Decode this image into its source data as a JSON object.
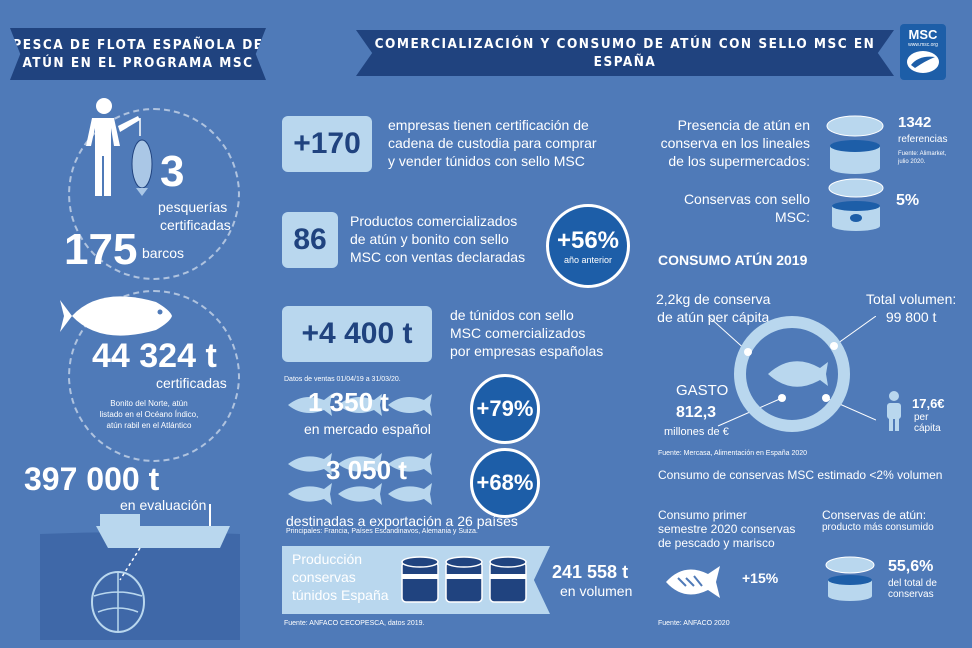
{
  "left_banner": {
    "line1": "PESCA DE FLOTA ESPAÑOLA DE",
    "line2": "ATÚN EN EL PROGRAMA MSC"
  },
  "right_banner": "COMERCIALIZACIÓN Y CONSUMO DE ATÚN CON SELLO MSC EN ESPAÑA",
  "logo": {
    "text": "MSC",
    "url": "www.msc.org"
  },
  "left": {
    "fisheries_count": "3",
    "fisheries_label1": "pesquerías",
    "fisheries_label2": "certificadas",
    "boats_count": "175",
    "boats_label": "barcos",
    "certified_tonnes": "44 324 t",
    "certified_label": "certificadas",
    "species1": "Bonito del Norte, atún",
    "species2": "listado en el Océano Índico,",
    "species3": "atún rabil en el Atlántico",
    "evaluation_tonnes": "397 000 t",
    "evaluation_label": "en evaluación"
  },
  "middle": {
    "companies_value": "+170",
    "companies_text1": "empresas tienen certificación de",
    "companies_text2": "cadena de custodia para comprar",
    "companies_text3": "y vender túnidos con sello MSC",
    "products_value": "86",
    "products_text1": "Productos comercializados",
    "products_text2": "de atún y bonito con sello",
    "products_text3": "MSC con ventas declaradas",
    "products_growth": "+56%",
    "products_growth_label": "año anterior",
    "tonnes_value": "+4 400 t",
    "tonnes_text1": "de túnidos con sello",
    "tonnes_text2": "MSC comercializados",
    "tonnes_text3": "por empresas españolas",
    "sales_dates": "Datos de ventas 01/04/19 a 31/03/20.",
    "domestic_value": "1 350 t",
    "domestic_label": "en mercado español",
    "domestic_growth": "+79%",
    "export_value": "3 050 t",
    "export_growth": "+68%",
    "export_label": "destinadas a exportación a 26 países",
    "export_countries": "Principales: Francia, Países Escandinavos, Alemania y Suiza.",
    "production_label1": "Producción",
    "production_label2": "conservas",
    "production_label3": "túnidos España",
    "production_value": "241 558 t",
    "production_unit": "en volumen",
    "production_source": "Fuente: ANFACO CECOPESCA, datos 2019."
  },
  "right": {
    "presence_text1": "Presencia de atún en",
    "presence_text2": "conserva en los lineales",
    "presence_text3": "de los supermercados:",
    "references_value": "1342",
    "references_label": "referencias",
    "references_source1": "Fuente: Alimarket,",
    "references_source2": "julio 2020.",
    "msc_cans_text1": "Conservas con sello",
    "msc_cans_text2": "MSC:",
    "msc_cans_value": "5%",
    "consumption_title": "CONSUMO ATÚN 2019",
    "per_capita_text1": "2,2kg de conserva",
    "per_capita_text2": "de atún per cápita",
    "total_volume_text1": "Total volumen:",
    "total_volume_text2": "99 800 t",
    "spending_label": "GASTO",
    "spending_value": "812,3",
    "spending_unit": "millones de €",
    "per_capita_spend": "17,6€",
    "per_capita_spend_label1": "per",
    "per_capita_spend_label2": "cápita",
    "consumption_source": "Fuente: Mercasa, Alimentación en España 2020",
    "msc_estimate": "Consumo de conservas MSC estimado <2% volumen",
    "semester_text1": "Consumo primer",
    "semester_text2": "semestre 2020 conservas",
    "semester_text3": "de pescado y marisco",
    "semester_growth": "+15%",
    "semester_source": "Fuente: ANFACO 2020",
    "most_consumed_text1": "Conservas de atún:",
    "most_consumed_text2": "producto más consumido",
    "most_consumed_value": "55,6%",
    "most_consumed_label1": "del total de",
    "most_consumed_label2": "conservas"
  },
  "colors": {
    "background": "#4f7ab8",
    "banner": "#20437f",
    "badge": "#b9d7ee",
    "accent": "#1d5ea8"
  }
}
